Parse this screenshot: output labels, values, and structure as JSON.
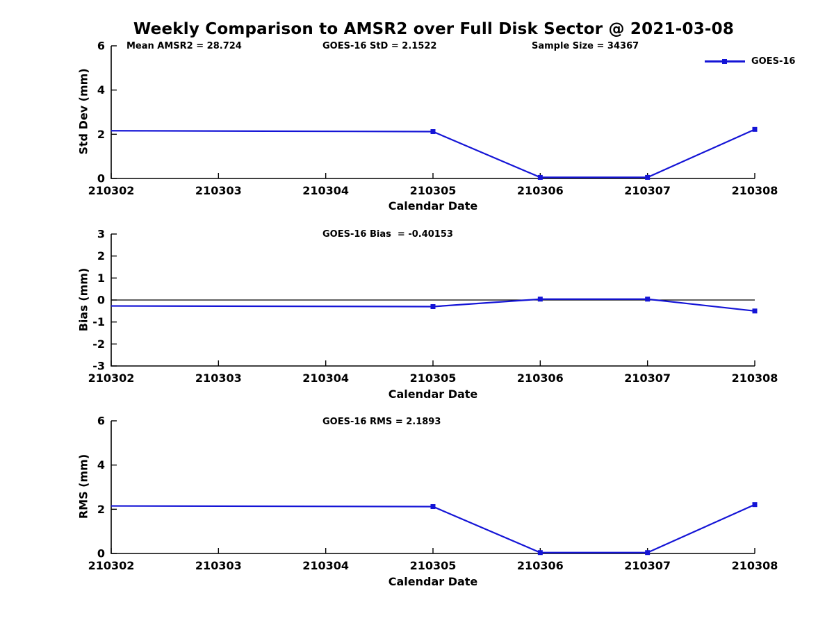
{
  "title": "Weekly Comparison to AMSR2 over Full Disk Sector @ 2021-03-08",
  "legend": {
    "label": "GOES-16",
    "color": "#1414d6"
  },
  "axis_color": "#000000",
  "chart_data": [
    {
      "type": "line",
      "name": "std-dev",
      "annotations": [
        "Mean AMSR2 = 28.724",
        "GOES-16 StD = 2.1522",
        "Sample Size = 34367"
      ],
      "ylabel": "Std Dev (mm)",
      "xlabel": "Calendar Date",
      "ylim": [
        0,
        6
      ],
      "yticks": [
        0,
        2,
        4,
        6
      ],
      "categories": [
        "210302",
        "210303",
        "210304",
        "210305",
        "210306",
        "210307",
        "210308"
      ],
      "series": [
        {
          "name": "GOES-16",
          "x": [
            "210302",
            "210305",
            "210306",
            "210307",
            "210308"
          ],
          "y": [
            2.16,
            2.12,
            0.05,
            0.05,
            2.22
          ],
          "markers": [
            false,
            true,
            true,
            true,
            true
          ]
        }
      ],
      "zero_line": false,
      "legend_shown": true
    },
    {
      "type": "line",
      "name": "bias",
      "annotations": [
        "GOES-16 Bias  = -0.40153"
      ],
      "ylabel": "Bias (mm)",
      "xlabel": "Calendar Date",
      "ylim": [
        -3,
        3
      ],
      "yticks": [
        -3,
        -2,
        -1,
        0,
        1,
        2,
        3
      ],
      "categories": [
        "210302",
        "210303",
        "210304",
        "210305",
        "210306",
        "210307",
        "210308"
      ],
      "series": [
        {
          "name": "GOES-16",
          "x": [
            "210302",
            "210305",
            "210306",
            "210307",
            "210308"
          ],
          "y": [
            -0.27,
            -0.3,
            0.04,
            0.04,
            -0.5
          ],
          "markers": [
            false,
            true,
            true,
            true,
            true
          ]
        }
      ],
      "zero_line": true,
      "legend_shown": false
    },
    {
      "type": "line",
      "name": "rms",
      "annotations": [
        "GOES-16 RMS = 2.1893"
      ],
      "ylabel": "RMS (mm)",
      "xlabel": "Calendar Date",
      "ylim": [
        0,
        6
      ],
      "yticks": [
        0,
        2,
        4,
        6
      ],
      "categories": [
        "210302",
        "210303",
        "210304",
        "210305",
        "210306",
        "210307",
        "210308"
      ],
      "series": [
        {
          "name": "GOES-16",
          "x": [
            "210302",
            "210305",
            "210306",
            "210307",
            "210308"
          ],
          "y": [
            2.15,
            2.12,
            0.04,
            0.04,
            2.21
          ],
          "markers": [
            false,
            true,
            true,
            true,
            true
          ]
        }
      ],
      "zero_line": false,
      "legend_shown": false
    }
  ]
}
